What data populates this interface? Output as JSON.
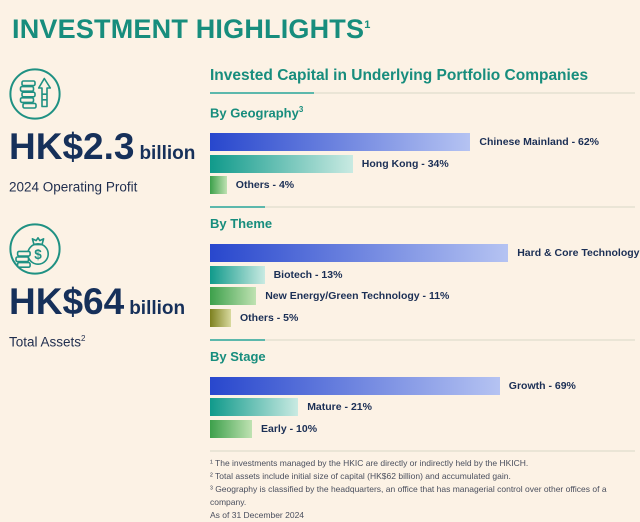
{
  "page": {
    "title": "INVESTMENT HIGHLIGHTS",
    "title_superscript": "1",
    "background": "#fcf2e5"
  },
  "colors": {
    "heading_teal": "#178d7d",
    "navy": "#16305a",
    "icon_teal": "#1f9183",
    "divider_light": "#eae5d6",
    "divider_accent": "#5cb8ac",
    "gradients": {
      "blue": [
        "#2847cd",
        "#b5c3f2"
      ],
      "teal": [
        "#109a8b",
        "#c9eae2"
      ],
      "green": [
        "#3da04b",
        "#bfe2b2"
      ],
      "olive": [
        "#7d801f",
        "#d8d99e"
      ]
    }
  },
  "stats": [
    {
      "icon": "coins-growth-icon",
      "value": "HK$2.3",
      "unit": "billion",
      "label": "2024 Operating Profit",
      "label_superscript": ""
    },
    {
      "icon": "money-bag-icon",
      "value": "HK$64",
      "unit": "billion",
      "label": "Total Assets",
      "label_superscript": "2"
    }
  ],
  "section": {
    "title": "Invested Capital in Underlying Portfolio Companies"
  },
  "chart_data": {
    "type": "bar",
    "title": "Invested Capital in Underlying Portfolio Companies",
    "orientation": "horizontal",
    "unit": "%",
    "xlim": [
      0,
      100
    ],
    "groups": [
      {
        "name": "By Geography",
        "superscript": "3",
        "bars": [
          {
            "label": "Chinese Mainland",
            "value": 62,
            "color": "blue"
          },
          {
            "label": "Hong Kong",
            "value": 34,
            "color": "teal"
          },
          {
            "label": "Others",
            "value": 4,
            "color": "green"
          }
        ]
      },
      {
        "name": "By Theme",
        "superscript": "",
        "bars": [
          {
            "label": "Hard & Core Technology",
            "value": 71,
            "color": "blue"
          },
          {
            "label": "Biotech",
            "value": 13,
            "color": "teal"
          },
          {
            "label": "New Energy/Green Technology",
            "value": 11,
            "color": "green"
          },
          {
            "label": "Others",
            "value": 5,
            "color": "olive"
          }
        ]
      },
      {
        "name": "By Stage",
        "superscript": "",
        "bars": [
          {
            "label": "Growth",
            "value": 69,
            "color": "blue"
          },
          {
            "label": "Mature",
            "value": 21,
            "color": "teal"
          },
          {
            "label": "Early",
            "value": 10,
            "color": "green"
          }
        ]
      }
    ]
  },
  "footnotes": [
    "¹ The investments managed by the HKIC are directly or indirectly held by the HKICH.",
    "² Total assets include initial size of capital (HK$62 billion) and accumulated gain.",
    "³ Geography is classified by the headquarters, an office that has managerial control over other offices of a company.",
    "As of 31 December 2024"
  ]
}
